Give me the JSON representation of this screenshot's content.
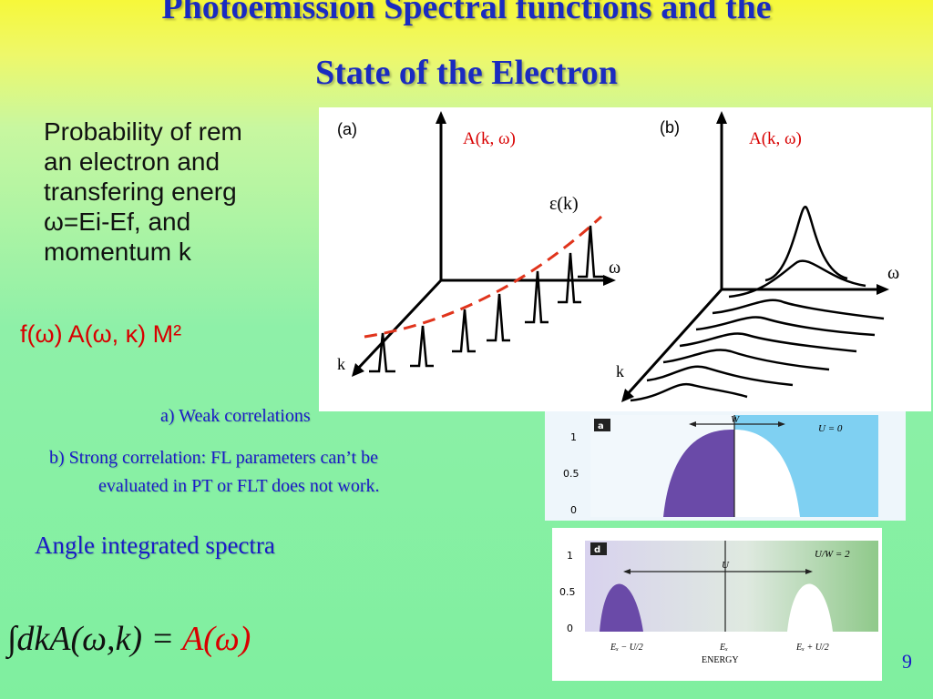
{
  "slide": {
    "title_line1": "Photoemission   Spectral functions  and the",
    "title_line2": "State of the Electron",
    "body_lines": [
      "Probability of rem",
      "an electron and",
      "transfering energ",
      "ω=Ei-Ef, and",
      "momentum k"
    ],
    "formula_red": "f(ω) A(ω,  κ) M²",
    "list_a": "a)   Weak correlations",
    "list_b1": "b)   Strong correlation: FL parameters can’t be",
    "list_b2": "evaluated in PT or FLT does not work.",
    "angle_heading": "Angle integrated spectra",
    "formula_lhs": "∫dkA(ω,k) = ",
    "formula_rhs": "A(ω)",
    "page_number": "9"
  },
  "figure_top": {
    "panel_a_tag": "(a)",
    "panel_b_tag": "(b)",
    "axis_label_a": "A(k, ω)",
    "axis_label_b": "A(k, ω)",
    "omega_label": "ω",
    "k_label": "k",
    "dispersion_label": "ε(k)"
  },
  "figure_bottom": {
    "panel_a_tag": "a",
    "panel_d_tag": "d",
    "u0_label": "U = 0",
    "w_label": "W",
    "u_label": "U",
    "uw_label": "U/W = 2",
    "y_ticks": [
      "1",
      "0.5",
      "0"
    ],
    "x_left": "Eₓ − U/2",
    "x_mid": "Eₓ",
    "x_right": "Eₓ + U/2",
    "x_title": "ENERGY"
  },
  "colors": {
    "title": "#1a2bc0",
    "red": "#d80000",
    "purple": "#6a4aa8"
  }
}
